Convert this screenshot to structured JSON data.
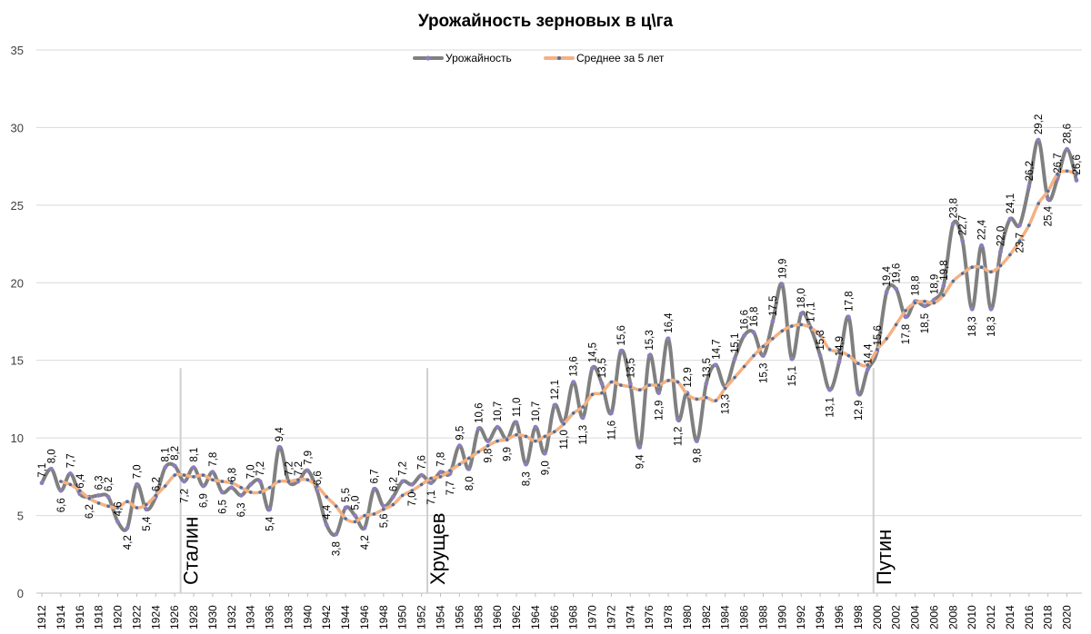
{
  "chart_data": {
    "type": "line",
    "title": "Урожайность зерновых в  ц\\га",
    "xlabel": "",
    "ylabel": "",
    "ylim": [
      0,
      35
    ],
    "yticks": [
      "0",
      "5",
      "10",
      "15",
      "20",
      "25",
      "30",
      "35"
    ],
    "grid": true,
    "legend_position": "top",
    "x": [
      1912,
      1913,
      1914,
      1915,
      1916,
      1917,
      1918,
      1919,
      1920,
      1921,
      1922,
      1923,
      1924,
      1925,
      1926,
      1927,
      1928,
      1929,
      1930,
      1931,
      1932,
      1933,
      1934,
      1935,
      1936,
      1937,
      1938,
      1939,
      1940,
      1941,
      1942,
      1943,
      1944,
      1945,
      1946,
      1947,
      1948,
      1949,
      1950,
      1951,
      1952,
      1953,
      1954,
      1955,
      1956,
      1957,
      1958,
      1959,
      1960,
      1961,
      1962,
      1963,
      1964,
      1965,
      1966,
      1967,
      1968,
      1969,
      1970,
      1971,
      1972,
      1973,
      1974,
      1975,
      1976,
      1977,
      1978,
      1979,
      1980,
      1981,
      1982,
      1983,
      1984,
      1985,
      1986,
      1987,
      1988,
      1989,
      1990,
      1991,
      1992,
      1993,
      1994,
      1995,
      1996,
      1997,
      1998,
      1999,
      2000,
      2001,
      2002,
      2003,
      2004,
      2005,
      2006,
      2007,
      2008,
      2009,
      2010,
      2011,
      2012,
      2013,
      2014,
      2015,
      2016,
      2017,
      2018,
      2019,
      2020,
      2021
    ],
    "x_tick_labels": [
      "1912",
      "1914",
      "1916",
      "1918",
      "1920",
      "1922",
      "1924",
      "1926",
      "1928",
      "1930",
      "1932",
      "1934",
      "1936",
      "1938",
      "1940",
      "1942",
      "1944",
      "1946",
      "1948",
      "1950",
      "1952",
      "1954",
      "1956",
      "1958",
      "1960",
      "1962",
      "1964",
      "1966",
      "1968",
      "1970",
      "1972",
      "1974",
      "1976",
      "1978",
      "1980",
      "1982",
      "1984",
      "1986",
      "1988",
      "1990",
      "1992",
      "1994",
      "1996",
      "1998",
      "2000",
      "2002",
      "2004",
      "2006",
      "2008",
      "2010",
      "2012",
      "2014",
      "2016",
      "2018",
      "2020"
    ],
    "series": [
      {
        "name": "Урожайность",
        "color": "#808080",
        "marker_color": "#8e7cc3",
        "values": [
          7.1,
          8.0,
          6.6,
          7.7,
          6.4,
          6.2,
          6.3,
          6.2,
          4.6,
          4.2,
          7.0,
          5.4,
          6.2,
          8.1,
          8.2,
          7.2,
          8.1,
          6.9,
          7.8,
          6.5,
          6.8,
          6.3,
          7.0,
          7.2,
          5.4,
          9.4,
          7.2,
          7.2,
          7.9,
          6.6,
          4.4,
          3.8,
          5.5,
          5.0,
          4.2,
          6.7,
          5.6,
          6.2,
          7.2,
          7.0,
          7.6,
          7.1,
          7.8,
          7.7,
          9.5,
          8.0,
          10.6,
          9.8,
          10.7,
          9.9,
          11.0,
          8.3,
          10.7,
          9.0,
          12.1,
          11.0,
          13.6,
          11.3,
          14.5,
          13.5,
          11.6,
          15.6,
          13.5,
          9.4,
          15.3,
          12.9,
          16.4,
          11.2,
          12.9,
          9.8,
          13.5,
          14.7,
          13.3,
          15.1,
          16.6,
          16.8,
          15.3,
          17.5,
          19.9,
          15.1,
          18.0,
          17.1,
          15.3,
          13.1,
          14.9,
          17.8,
          12.9,
          14.4,
          15.6,
          19.4,
          19.6,
          17.8,
          18.8,
          18.5,
          18.9,
          19.8,
          23.8,
          22.7,
          18.3,
          22.4,
          18.3,
          22.0,
          24.1,
          23.7,
          26.2,
          29.2,
          25.4,
          26.7,
          28.6,
          26.6
        ]
      },
      {
        "name": "Среднее за 5 лет",
        "color": "#f4b183",
        "marker_color": "#4a6fa5",
        "values": [
          null,
          null,
          7.2,
          7.0,
          6.6,
          6.1,
          5.8,
          5.6,
          5.5,
          5.9,
          5.5,
          5.7,
          6.3,
          6.9,
          7.6,
          7.6,
          7.5,
          7.6,
          7.3,
          7.2,
          7.1,
          6.8,
          6.5,
          6.5,
          6.8,
          7.2,
          7.2,
          7.3,
          7.3,
          6.9,
          6.2,
          5.6,
          4.8,
          4.6,
          5.0,
          5.1,
          5.4,
          5.7,
          6.3,
          6.6,
          7.0,
          7.4,
          7.5,
          7.9,
          8.3,
          8.7,
          9.1,
          9.5,
          9.8,
          9.9,
          10.2,
          10.1,
          9.8,
          10.1,
          10.4,
          10.9,
          11.6,
          12.0,
          12.8,
          12.9,
          13.6,
          13.4,
          13.3,
          13.1,
          13.4,
          13.4,
          13.7,
          13.6,
          12.8,
          12.5,
          12.6,
          12.4,
          13.2,
          13.9,
          14.6,
          15.3,
          15.9,
          16.4,
          16.9,
          17.2,
          17.3,
          17.1,
          16.6,
          15.7,
          15.6,
          15.3,
          14.8,
          14.7,
          15.7,
          16.4,
          17.3,
          18.2,
          18.7,
          18.8,
          18.7,
          19.2,
          20.1,
          20.6,
          21.0,
          21.0,
          20.7,
          21.1,
          21.8,
          22.7,
          23.7,
          25.1,
          25.9,
          27.0,
          27.2,
          27.0
        ]
      }
    ],
    "data_labels": [
      "7,1",
      "8,0",
      "6,6",
      "7,7",
      "6,4",
      "6,2",
      "6,3",
      "6,2",
      "4,6",
      "4,2",
      "7,0",
      "5,4",
      "6,2",
      "8,1",
      "8,2",
      "7,2",
      "8,1",
      "6,9",
      "7,8",
      "6,5",
      "6,8",
      "6,3",
      "7,0",
      "7,2",
      "5,4",
      "9,4",
      "7,2",
      "7,2",
      "7,9",
      "6,6",
      "4,4",
      "3,8",
      "5,5",
      "5,0",
      "4,2",
      "6,7",
      "5,6",
      "6,2",
      "7,2",
      "7,0",
      "7,6",
      "7,1",
      "7,8",
      "7,7",
      "9,5",
      "8,0",
      "10,6",
      "9,8",
      "10,7",
      "9,9",
      "11,0",
      "8,3",
      "10,7",
      "9,0",
      "12,1",
      "11,0",
      "13,6",
      "11,3",
      "14,5",
      "13,5",
      "11,6",
      "15,6",
      "13,5",
      "9,4",
      "15,3",
      "12,9",
      "16,4",
      "11,2",
      "12,9",
      "9,8",
      "13,5",
      "14,7",
      "13,3",
      "15,1",
      "16,6",
      "16,8",
      "15,3",
      "17,5",
      "19,9",
      "15,1",
      "18,0",
      "17,1",
      "15,3",
      "13,1",
      "14,9",
      "17,8",
      "12,9",
      "14,4",
      "15,6",
      "19,4",
      "19,6",
      "17,8",
      "18,8",
      "18,5",
      "18,9",
      "19,8",
      "23,8",
      "22,7",
      "18,3",
      "22,4",
      "18,3",
      "22,0",
      "24,1",
      "23,7",
      "26,2",
      "29,2",
      "25,4",
      "26,7",
      "28,6",
      "26,6"
    ],
    "annotations": [
      {
        "text": "Сталин",
        "year": 1927
      },
      {
        "text": "Хрущев",
        "year": 1953
      },
      {
        "text": "Путин",
        "year": 2000
      }
    ]
  }
}
